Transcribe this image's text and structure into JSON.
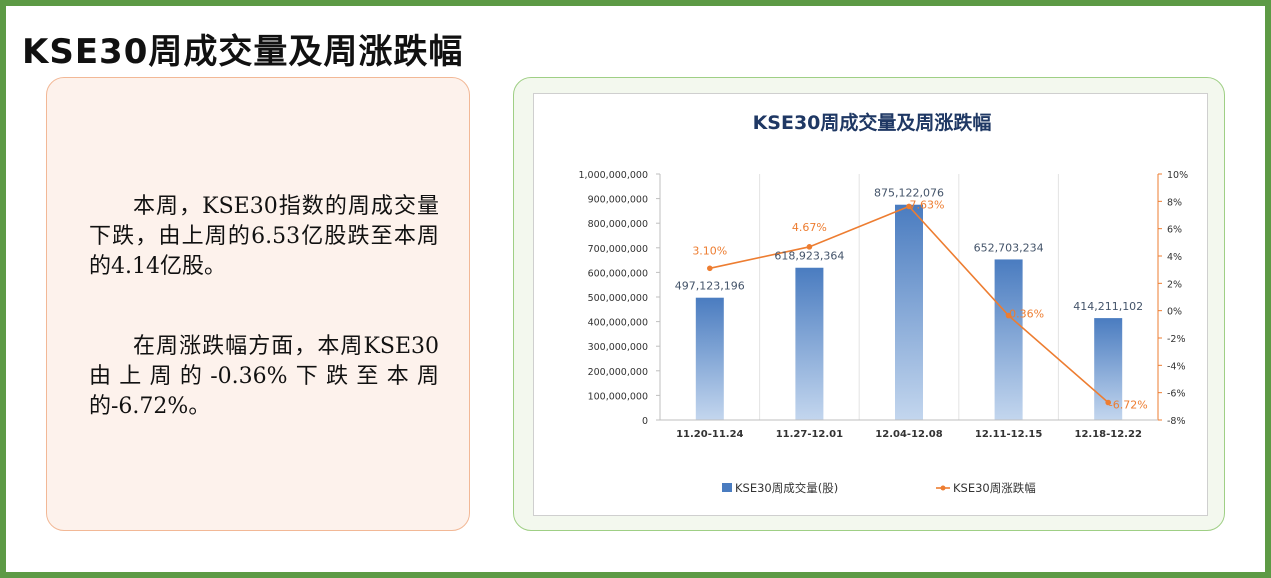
{
  "page": {
    "title": "KSE30周成交量及周涨跌幅"
  },
  "summary": {
    "paragraph1": "本周，KSE30指数的周成交量下跌，由上周的6.53亿股跌至本周的4.14亿股。",
    "paragraph2": "在周涨跌幅方面，本周KSE30由上周的-0.36%下跌至本周的-6.72%。"
  },
  "colors": {
    "frame": "#5d9a45",
    "bar_top": "#4a7cc0",
    "bar_bottom": "#c3d6ee",
    "line": "#ed7d31",
    "title_text": "#1f3864"
  },
  "chart_data": {
    "type": "bar",
    "title": "KSE30周成交量及周涨跌幅",
    "categories": [
      "11.20-11.24",
      "11.27-12.01",
      "12.04-12.08",
      "12.11-12.15",
      "12.18-12.22"
    ],
    "series": [
      {
        "name": "KSE30周成交量(股)",
        "type": "bar",
        "axis": "left",
        "values": [
          497123196,
          618923364,
          875122076,
          652703234,
          414211102
        ],
        "labels": [
          "497,123,196",
          "618,923,364",
          "875,122,076",
          "652,703,234",
          "414,211,102"
        ]
      },
      {
        "name": "KSE30周涨跌幅",
        "type": "line",
        "axis": "right",
        "values": [
          3.1,
          4.67,
          7.63,
          -0.36,
          -6.72
        ],
        "labels": [
          "3.10%",
          "4.67%",
          "7.63%",
          "-0.36%",
          "-6.72%"
        ]
      }
    ],
    "y_left": {
      "min": 0,
      "max": 1000000000,
      "ticks": [
        "0",
        "100,000,000",
        "200,000,000",
        "300,000,000",
        "400,000,000",
        "500,000,000",
        "600,000,000",
        "700,000,000",
        "800,000,000",
        "900,000,000",
        "1,000,000,000"
      ]
    },
    "y_right": {
      "min": -8,
      "max": 10,
      "ticks": [
        "-8%",
        "-6%",
        "-4%",
        "-2%",
        "0%",
        "2%",
        "4%",
        "6%",
        "8%",
        "10%"
      ]
    },
    "legend": "bottom",
    "grid": "vertical"
  }
}
